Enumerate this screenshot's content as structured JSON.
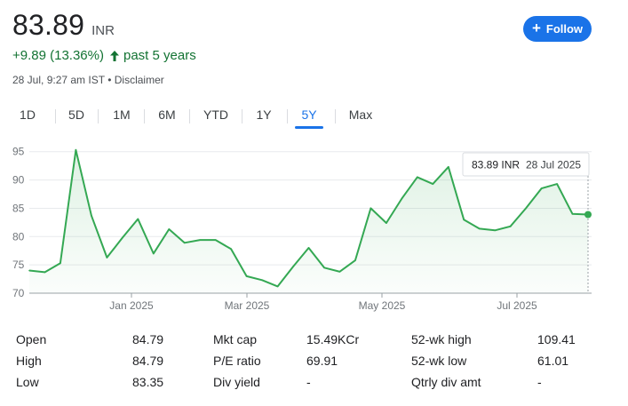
{
  "quote": {
    "price": "83.89",
    "currency": "INR",
    "change": "+9.89 (13.36%)",
    "period": "past 5 years",
    "timestamp": "28 Jul, 9:27 am IST",
    "separator": "•",
    "disclaimer": "Disclaimer",
    "positive_color": "#137333"
  },
  "follow_button": {
    "label": "Follow",
    "icon": "plus-icon",
    "color": "#1a73e8"
  },
  "tabs": [
    {
      "label": "1D",
      "active": false
    },
    {
      "label": "5D",
      "active": false
    },
    {
      "label": "1M",
      "active": false
    },
    {
      "label": "6M",
      "active": false
    },
    {
      "label": "YTD",
      "active": false
    },
    {
      "label": "1Y",
      "active": false
    },
    {
      "label": "5Y",
      "active": true
    },
    {
      "label": "Max",
      "active": false
    }
  ],
  "tooltip": {
    "value": "83.89 INR",
    "date": "28 Jul 2025"
  },
  "chart_data": {
    "type": "area",
    "line_color": "#34a853",
    "y_ticks": [
      95,
      90,
      85,
      80,
      75,
      70
    ],
    "ylim": [
      70,
      97
    ],
    "x_tick_labels": [
      "Jan 2025",
      "Mar 2025",
      "May 2025",
      "Jul 2025"
    ],
    "grid": true,
    "values": [
      74.0,
      73.7,
      75.3,
      95.3,
      83.7,
      76.3,
      79.8,
      83.1,
      77.0,
      81.3,
      78.9,
      79.4,
      79.4,
      77.8,
      73.0,
      72.3,
      71.2,
      74.7,
      78.0,
      74.5,
      73.8,
      75.8,
      85.0,
      82.4,
      86.7,
      90.5,
      89.3,
      92.3,
      83.0,
      81.4,
      81.1,
      81.8,
      85.0,
      88.5,
      89.3,
      84.0,
      83.89
    ]
  },
  "stats": [
    {
      "label": "Open",
      "value": "84.79",
      "label2": "Mkt cap",
      "value2": "15.49KCr",
      "label3": "52-wk high",
      "value3": "109.41"
    },
    {
      "label": "High",
      "value": "84.79",
      "label2": "P/E ratio",
      "value2": "69.91",
      "label3": "52-wk low",
      "value3": "61.01"
    },
    {
      "label": "Low",
      "value": "83.35",
      "label2": "Div yield",
      "value2": "-",
      "label3": "Qtrly div amt",
      "value3": "-"
    }
  ]
}
